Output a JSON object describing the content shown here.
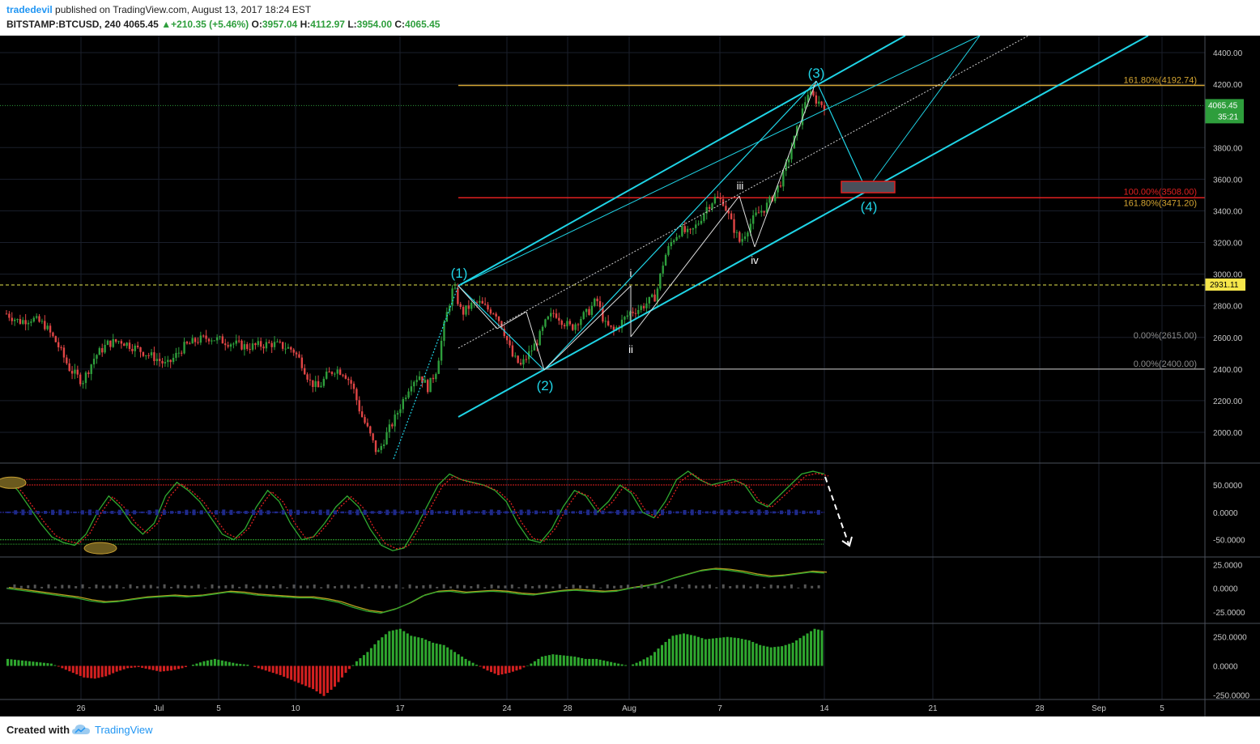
{
  "header": {
    "user": "tradedevil",
    "published_text": "published on TradingView.com, August 13, 2017 18:24 EST",
    "symbol": "BITSTAMP:BTCUSD, 240",
    "last": "4065.45",
    "change": "▲+210.35 (+5.46%)",
    "o_label": "O:",
    "o": "3957.04",
    "h_label": "H:",
    "h": "4112.97",
    "l_label": "L:",
    "l": "3954.00",
    "c_label": "C:",
    "c": "4065.45"
  },
  "footer": {
    "created": "Created with",
    "brand": "TradingView",
    "logo_icon": "tradingview-cloud-icon"
  },
  "colors": {
    "background": "#000000",
    "channel": "#1fd4e6",
    "up_candle": "#2e9e3c",
    "down_candle": "#e04545",
    "fib_gold": "#d4a532",
    "fib_red": "#e02020",
    "fib_grey": "#8c8c8c",
    "yellow_dash": "#e6e64d",
    "hist_green": "#2fa82f",
    "hist_red": "#d42020"
  },
  "chart_data": {
    "type": "candlestick",
    "price_axis": {
      "ticks": [
        "4400.00",
        "4200.00",
        "3800.00",
        "3600.00",
        "3400.00",
        "3200.00",
        "3000.00",
        "2800.00",
        "2600.00",
        "2400.00",
        "2200.00",
        "2000.00"
      ],
      "last_price_label": "4065.45",
      "countdown_label": "35:21",
      "hline_label": "2931.11",
      "ylim": [
        1800,
        4500
      ]
    },
    "x_ticks": [
      "26",
      "Jul",
      "5",
      "10",
      "17",
      "24",
      "28",
      "Aug",
      "7",
      "14",
      "21",
      "28",
      "Sep",
      "5"
    ],
    "fib_labels": {
      "gold_top": "161.80%(4192.74)",
      "red": "100.00%(3508.00)",
      "gold_mid": "161.80%(3471.20)",
      "grey_upper": "0.00%(2615.00)",
      "grey_lower": "0.00%(2400.00)"
    },
    "wave_labels": {
      "w1": "(1)",
      "w2": "(2)",
      "w3": "(3)",
      "w4": "(4)",
      "sub_i": "i",
      "sub_ii": "ii",
      "sub_iii": "iii",
      "sub_iv": "iv"
    },
    "price_path": [
      [
        0,
        2750
      ],
      [
        3,
        2700
      ],
      [
        6,
        2720
      ],
      [
        9,
        2680
      ],
      [
        12,
        2560
      ],
      [
        15,
        2400
      ],
      [
        18,
        2320
      ],
      [
        21,
        2480
      ],
      [
        24,
        2560
      ],
      [
        27,
        2580
      ],
      [
        30,
        2540
      ],
      [
        33,
        2500
      ],
      [
        36,
        2460
      ],
      [
        38,
        2420
      ],
      [
        40,
        2480
      ],
      [
        42,
        2540
      ],
      [
        45,
        2580
      ],
      [
        48,
        2600
      ],
      [
        51,
        2580
      ],
      [
        54,
        2560
      ],
      [
        57,
        2540
      ],
      [
        60,
        2550
      ],
      [
        63,
        2560
      ],
      [
        66,
        2540
      ],
      [
        68,
        2520
      ],
      [
        70,
        2440
      ],
      [
        72,
        2320
      ],
      [
        74,
        2280
      ],
      [
        76,
        2360
      ],
      [
        78,
        2400
      ],
      [
        80,
        2380
      ],
      [
        82,
        2300
      ],
      [
        84,
        2120
      ],
      [
        86,
        2000
      ],
      [
        88,
        1860
      ],
      [
        90,
        1980
      ],
      [
        92,
        2080
      ],
      [
        94,
        2200
      ],
      [
        96,
        2320
      ],
      [
        98,
        2360
      ],
      [
        100,
        2280
      ],
      [
        102,
        2400
      ],
      [
        104,
        2700
      ],
      [
        106,
        2920
      ],
      [
        108,
        2750
      ],
      [
        110,
        2800
      ],
      [
        112,
        2820
      ],
      [
        114,
        2780
      ],
      [
        116,
        2760
      ],
      [
        118,
        2640
      ],
      [
        120,
        2480
      ],
      [
        122,
        2420
      ],
      [
        124,
        2500
      ],
      [
        126,
        2580
      ],
      [
        128,
        2700
      ],
      [
        130,
        2760
      ],
      [
        132,
        2700
      ],
      [
        134,
        2660
      ],
      [
        136,
        2720
      ],
      [
        138,
        2760
      ],
      [
        140,
        2840
      ],
      [
        142,
        2680
      ],
      [
        144,
        2640
      ],
      [
        146,
        2700
      ],
      [
        148,
        2760
      ],
      [
        150,
        2780
      ],
      [
        152,
        2820
      ],
      [
        154,
        2860
      ],
      [
        156,
        3100
      ],
      [
        158,
        3220
      ],
      [
        160,
        3280
      ],
      [
        162,
        3250
      ],
      [
        164,
        3320
      ],
      [
        166,
        3420
      ],
      [
        168,
        3480
      ],
      [
        170,
        3460
      ],
      [
        172,
        3320
      ],
      [
        174,
        3200
      ],
      [
        176,
        3300
      ],
      [
        178,
        3380
      ],
      [
        180,
        3420
      ],
      [
        182,
        3500
      ],
      [
        184,
        3600
      ],
      [
        186,
        3780
      ],
      [
        188,
        3950
      ],
      [
        190,
        4150
      ],
      [
        192,
        4100
      ],
      [
        194,
        4065
      ]
    ],
    "osc1": {
      "lines": [
        "50.0000",
        "0.0000",
        "-50.0000"
      ],
      "ylim": [
        -80,
        90
      ],
      "values": [
        60,
        40,
        10,
        -20,
        -45,
        -55,
        -60,
        -40,
        0,
        30,
        10,
        -20,
        -40,
        -20,
        30,
        55,
        40,
        20,
        -10,
        -40,
        -50,
        -30,
        10,
        40,
        20,
        -20,
        -50,
        -45,
        -20,
        10,
        30,
        10,
        -30,
        -60,
        -70,
        -65,
        -30,
        10,
        50,
        70,
        60,
        55,
        50,
        40,
        20,
        -20,
        -50,
        -55,
        -30,
        10,
        40,
        30,
        0,
        20,
        50,
        35,
        0,
        -10,
        20,
        60,
        75,
        60,
        50,
        55,
        60,
        50,
        20,
        10,
        30,
        50,
        70,
        75,
        70
      ]
    },
    "osc2": {
      "lines": [
        "25.0000",
        "0.0000",
        "-25.0000"
      ],
      "ylim": [
        -35,
        32
      ],
      "values": [
        0,
        -2,
        -4,
        -6,
        -8,
        -10,
        -13,
        -15,
        -14,
        -12,
        -10,
        -9,
        -8,
        -9,
        -8,
        -6,
        -4,
        -5,
        -7,
        -8,
        -9,
        -10,
        -10,
        -12,
        -15,
        -20,
        -24,
        -26,
        -22,
        -16,
        -8,
        -4,
        -3,
        -5,
        -4,
        -3,
        -4,
        -6,
        -7,
        -5,
        -3,
        -2,
        -3,
        -4,
        -3,
        0,
        2,
        5,
        10,
        14,
        18,
        20,
        19,
        17,
        14,
        12,
        13,
        15,
        17,
        16
      ]
    },
    "hist": {
      "lines": [
        "250.0000",
        "0.0000",
        "-250.0000"
      ],
      "ylim": [
        -290,
        360
      ],
      "values": [
        60,
        50,
        40,
        30,
        20,
        -20,
        -60,
        -100,
        -110,
        -90,
        -50,
        -20,
        -10,
        -30,
        -50,
        -40,
        -20,
        10,
        40,
        60,
        40,
        20,
        10,
        -20,
        -50,
        -80,
        -120,
        -160,
        -200,
        -260,
        -180,
        -60,
        40,
        120,
        220,
        300,
        320,
        260,
        240,
        200,
        180,
        120,
        60,
        10,
        -40,
        -80,
        -60,
        -30,
        20,
        80,
        100,
        90,
        80,
        60,
        60,
        40,
        20,
        0,
        40,
        90,
        180,
        260,
        280,
        260,
        230,
        240,
        250,
        240,
        220,
        180,
        160,
        170,
        200,
        260,
        320,
        300
      ]
    }
  }
}
